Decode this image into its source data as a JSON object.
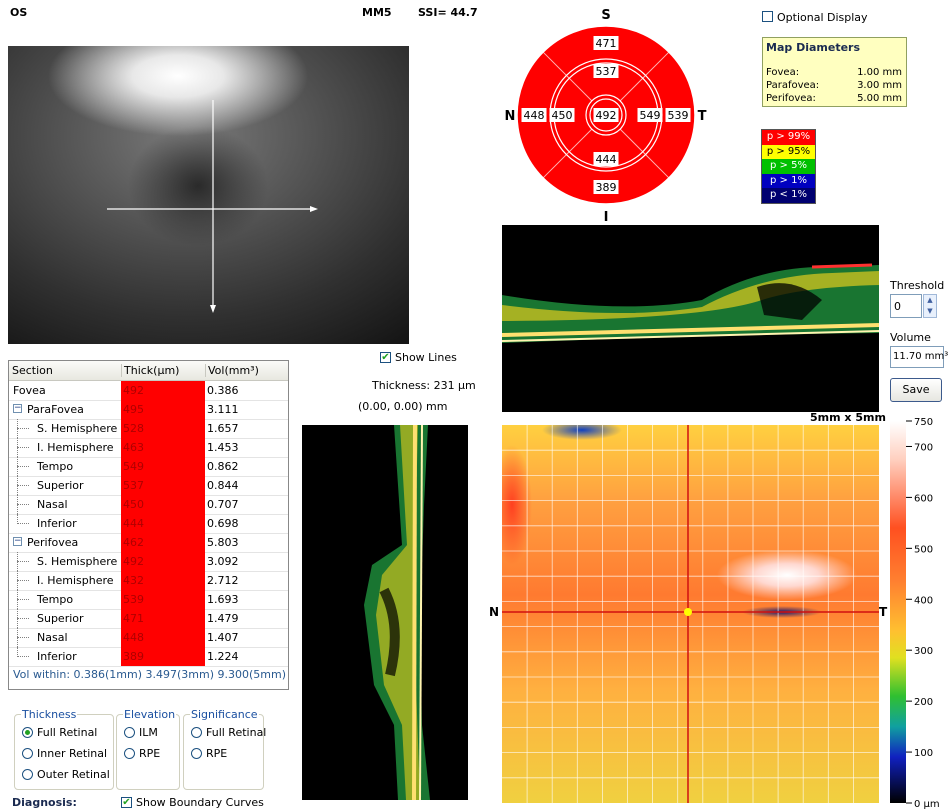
{
  "header": {
    "eye": "OS",
    "scan": "MM5",
    "ssi": "SSI= 44.7"
  },
  "table": {
    "columns": [
      "Section",
      "Thick(µm)",
      "Vol(mm³)"
    ],
    "thick_color": "#ff0000",
    "rows": [
      {
        "section": "Fovea",
        "thick": "492",
        "vol": "0.386"
      },
      {
        "section": "ParaFovea",
        "thick": "495",
        "vol": "3.111",
        "children": [
          {
            "section": "S. Hemisphere",
            "thick": "528",
            "vol": "1.657"
          },
          {
            "section": "I. Hemisphere",
            "thick": "463",
            "vol": "1.453"
          },
          {
            "section": "Tempo",
            "thick": "549",
            "vol": "0.862"
          },
          {
            "section": "Superior",
            "thick": "537",
            "vol": "0.844"
          },
          {
            "section": "Nasal",
            "thick": "450",
            "vol": "0.707"
          },
          {
            "section": "Inferior",
            "thick": "444",
            "vol": "0.698"
          }
        ]
      },
      {
        "section": "Perifovea",
        "thick": "462",
        "vol": "5.803",
        "children": [
          {
            "section": "S. Hemisphere",
            "thick": "492",
            "vol": "3.092"
          },
          {
            "section": "I. Hemisphere",
            "thick": "432",
            "vol": "2.712"
          },
          {
            "section": "Tempo",
            "thick": "539",
            "vol": "1.693"
          },
          {
            "section": "Superior",
            "thick": "471",
            "vol": "1.479"
          },
          {
            "section": "Nasal",
            "thick": "448",
            "vol": "1.407"
          },
          {
            "section": "Inferior",
            "thick": "389",
            "vol": "1.224"
          }
        ]
      }
    ],
    "footer": "Vol within: 0.386(1mm) 3.497(3mm) 9.300(5mm)"
  },
  "options": {
    "groups": [
      {
        "title": "Thickness",
        "items": [
          {
            "label": "Full Retinal",
            "checked": true
          },
          {
            "label": "Inner Retinal",
            "checked": false
          },
          {
            "label": "Outer Retinal",
            "checked": false
          }
        ]
      },
      {
        "title": "Elevation",
        "items": [
          {
            "label": "ILM",
            "checked": false
          },
          {
            "label": "RPE",
            "checked": false
          }
        ]
      },
      {
        "title": "Significance",
        "items": [
          {
            "label": "Full Retinal",
            "checked": false
          },
          {
            "label": "RPE",
            "checked": false
          }
        ]
      }
    ]
  },
  "diagnosis": "Diagnosis:",
  "show_boundary_curves": {
    "label": "Show Boundary Curves",
    "checked": true
  },
  "show_lines": {
    "label": "Show Lines",
    "checked": true
  },
  "thickness_readout": "Thickness: 231 µm",
  "position_readout": "(0.00, 0.00) mm",
  "sector_map": {
    "color": "#ff0000",
    "labels": {
      "superior": "S",
      "nasal": "N",
      "temporal": "T",
      "inferior": "I"
    },
    "center": "492",
    "inner": {
      "superior": "537",
      "nasal": "450",
      "temporal": "549",
      "inferior": "444"
    },
    "outer": {
      "superior": "471",
      "nasal": "448",
      "temporal": "539",
      "inferior": "389"
    }
  },
  "optional_display": {
    "label": "Optional Display",
    "checked": false
  },
  "map_diameters": {
    "title": "Map Diameters",
    "rows": [
      [
        "Fovea:",
        "1.00 mm"
      ],
      [
        "Parafovea:",
        "3.00 mm"
      ],
      [
        "Perifovea:",
        "5.00 mm"
      ]
    ]
  },
  "significance_legend": [
    {
      "label": "p > 99%",
      "color": "#ff0000",
      "text_color": "#ffffff"
    },
    {
      "label": "p > 95%",
      "color": "#ffff00",
      "text_color": "#000000"
    },
    {
      "label": "p > 5%",
      "color": "#00c000",
      "text_color": "#ffffff"
    },
    {
      "label": "p > 1%",
      "color": "#0000c0",
      "text_color": "#ffffff"
    },
    {
      "label": "p < 1%",
      "color": "#000070",
      "text_color": "#ffffff"
    }
  ],
  "threshold": {
    "label": "Threshold",
    "value": "0"
  },
  "volume": {
    "label": "Volume",
    "value": "11.70 mm³"
  },
  "save": "Save",
  "thickness_map": {
    "size": "5mm x 5mm",
    "nasal": "N",
    "temporal": "T",
    "colorbar": {
      "lim": [
        0,
        750
      ],
      "ticks": [
        {
          "value": 0,
          "label": "0 µm"
        },
        100,
        200,
        300,
        400,
        500,
        600,
        700,
        750
      ]
    }
  }
}
